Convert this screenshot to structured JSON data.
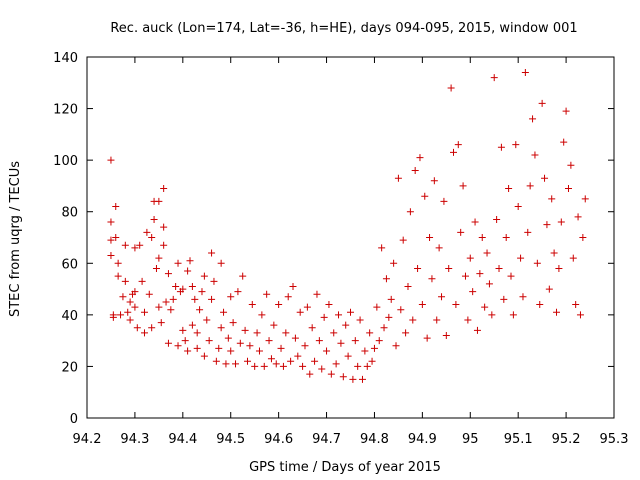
{
  "chart_data": {
    "type": "scatter",
    "title": "Rec. auck (Lon=174, Lat=-36, h=HE), days 094-095, 2015, window 001",
    "xlabel": "GPS time / Days of year 2015",
    "ylabel": "STEC from uqrg / TECUs",
    "xlim": [
      94.2,
      95.3
    ],
    "ylim": [
      0,
      140
    ],
    "x_ticks": [
      "94.2",
      "94.3",
      "94.4",
      "94.5",
      "94.6",
      "94.7",
      "94.8",
      "94.9",
      "95",
      "95.1",
      "95.2",
      "95.3"
    ],
    "y_ticks": [
      "0",
      "20",
      "40",
      "60",
      "80",
      "100",
      "120",
      "140"
    ],
    "x_tick_values": [
      94.2,
      94.3,
      94.4,
      94.5,
      94.6,
      94.7,
      94.8,
      94.9,
      95.0,
      95.1,
      95.2,
      95.3
    ],
    "y_tick_values": [
      0,
      20,
      40,
      60,
      80,
      100,
      120,
      140
    ],
    "marker": "+",
    "color": "#cc0000",
    "grid": false,
    "points": [
      [
        94.25,
        100
      ],
      [
        94.25,
        76
      ],
      [
        94.25,
        69
      ],
      [
        94.25,
        63
      ],
      [
        94.255,
        40
      ],
      [
        94.255,
        39
      ],
      [
        94.26,
        70
      ],
      [
        94.26,
        82
      ],
      [
        94.265,
        60
      ],
      [
        94.265,
        55
      ],
      [
        94.27,
        40
      ],
      [
        94.275,
        47
      ],
      [
        94.28,
        67
      ],
      [
        94.28,
        53
      ],
      [
        94.285,
        41
      ],
      [
        94.29,
        38
      ],
      [
        94.29,
        45
      ],
      [
        94.295,
        48
      ],
      [
        94.3,
        66
      ],
      [
        94.3,
        49
      ],
      [
        94.3,
        43
      ],
      [
        94.305,
        35
      ],
      [
        94.31,
        67
      ],
      [
        94.315,
        53
      ],
      [
        94.32,
        33
      ],
      [
        94.32,
        41
      ],
      [
        94.325,
        72
      ],
      [
        94.33,
        48
      ],
      [
        94.335,
        35
      ],
      [
        94.335,
        70
      ],
      [
        94.34,
        84
      ],
      [
        94.34,
        77
      ],
      [
        94.345,
        58
      ],
      [
        94.35,
        84
      ],
      [
        94.35,
        62
      ],
      [
        94.35,
        43
      ],
      [
        94.355,
        37
      ],
      [
        94.36,
        74
      ],
      [
        94.36,
        89
      ],
      [
        94.36,
        67
      ],
      [
        94.365,
        45
      ],
      [
        94.37,
        56
      ],
      [
        94.37,
        29
      ],
      [
        94.375,
        42
      ],
      [
        94.38,
        46
      ],
      [
        94.385,
        51
      ],
      [
        94.39,
        60
      ],
      [
        94.39,
        28
      ],
      [
        94.395,
        49
      ],
      [
        94.4,
        50
      ],
      [
        94.4,
        34
      ],
      [
        94.405,
        30
      ],
      [
        94.41,
        57
      ],
      [
        94.41,
        26
      ],
      [
        94.415,
        61
      ],
      [
        94.42,
        51
      ],
      [
        94.42,
        36
      ],
      [
        94.425,
        46
      ],
      [
        94.43,
        33
      ],
      [
        94.43,
        27
      ],
      [
        94.435,
        42
      ],
      [
        94.44,
        49
      ],
      [
        94.445,
        55
      ],
      [
        94.445,
        24
      ],
      [
        94.45,
        38
      ],
      [
        94.455,
        30
      ],
      [
        94.46,
        64
      ],
      [
        94.46,
        46
      ],
      [
        94.465,
        53
      ],
      [
        94.47,
        22
      ],
      [
        94.475,
        27
      ],
      [
        94.48,
        35
      ],
      [
        94.48,
        60
      ],
      [
        94.485,
        41
      ],
      [
        94.49,
        21
      ],
      [
        94.495,
        31
      ],
      [
        94.5,
        47
      ],
      [
        94.5,
        26
      ],
      [
        94.505,
        37
      ],
      [
        94.51,
        21
      ],
      [
        94.515,
        49
      ],
      [
        94.52,
        29
      ],
      [
        94.525,
        55
      ],
      [
        94.53,
        34
      ],
      [
        94.535,
        22
      ],
      [
        94.54,
        28
      ],
      [
        94.545,
        44
      ],
      [
        94.55,
        20
      ],
      [
        94.555,
        33
      ],
      [
        94.56,
        26
      ],
      [
        94.565,
        40
      ],
      [
        94.57,
        20
      ],
      [
        94.575,
        48
      ],
      [
        94.58,
        30
      ],
      [
        94.585,
        23
      ],
      [
        94.59,
        36
      ],
      [
        94.595,
        21
      ],
      [
        94.6,
        44
      ],
      [
        94.605,
        27
      ],
      [
        94.61,
        20
      ],
      [
        94.615,
        33
      ],
      [
        94.62,
        47
      ],
      [
        94.625,
        22
      ],
      [
        94.63,
        51
      ],
      [
        94.635,
        31
      ],
      [
        94.64,
        24
      ],
      [
        94.645,
        41
      ],
      [
        94.65,
        20
      ],
      [
        94.655,
        28
      ],
      [
        94.66,
        43
      ],
      [
        94.665,
        17
      ],
      [
        94.67,
        35
      ],
      [
        94.675,
        22
      ],
      [
        94.68,
        48
      ],
      [
        94.685,
        30
      ],
      [
        94.69,
        19
      ],
      [
        94.695,
        39
      ],
      [
        94.7,
        26
      ],
      [
        94.705,
        44
      ],
      [
        94.71,
        17
      ],
      [
        94.715,
        33
      ],
      [
        94.72,
        21
      ],
      [
        94.725,
        40
      ],
      [
        94.73,
        29
      ],
      [
        94.735,
        16
      ],
      [
        94.74,
        36
      ],
      [
        94.745,
        24
      ],
      [
        94.75,
        41
      ],
      [
        94.755,
        15
      ],
      [
        94.76,
        30
      ],
      [
        94.765,
        20
      ],
      [
        94.77,
        38
      ],
      [
        94.775,
        15
      ],
      [
        94.78,
        26
      ],
      [
        94.785,
        20
      ],
      [
        94.79,
        33
      ],
      [
        94.795,
        22
      ],
      [
        94.8,
        27
      ],
      [
        94.805,
        43
      ],
      [
        94.81,
        30
      ],
      [
        94.815,
        66
      ],
      [
        94.82,
        35
      ],
      [
        94.825,
        54
      ],
      [
        94.83,
        39
      ],
      [
        94.835,
        46
      ],
      [
        94.84,
        60
      ],
      [
        94.845,
        28
      ],
      [
        94.85,
        93
      ],
      [
        94.855,
        42
      ],
      [
        94.86,
        69
      ],
      [
        94.865,
        33
      ],
      [
        94.87,
        51
      ],
      [
        94.875,
        80
      ],
      [
        94.88,
        38
      ],
      [
        94.885,
        96
      ],
      [
        94.89,
        58
      ],
      [
        94.895,
        101
      ],
      [
        94.9,
        44
      ],
      [
        94.905,
        86
      ],
      [
        94.91,
        31
      ],
      [
        94.915,
        70
      ],
      [
        94.92,
        54
      ],
      [
        94.925,
        92
      ],
      [
        94.93,
        38
      ],
      [
        94.935,
        66
      ],
      [
        94.94,
        47
      ],
      [
        94.945,
        84
      ],
      [
        94.95,
        32
      ],
      [
        94.955,
        58
      ],
      [
        94.96,
        128
      ],
      [
        94.965,
        103
      ],
      [
        94.97,
        44
      ],
      [
        94.975,
        106
      ],
      [
        94.98,
        72
      ],
      [
        94.985,
        90
      ],
      [
        94.99,
        55
      ],
      [
        94.995,
        38
      ],
      [
        95.0,
        62
      ],
      [
        95.005,
        49
      ],
      [
        95.01,
        76
      ],
      [
        95.015,
        34
      ],
      [
        95.02,
        56
      ],
      [
        95.025,
        70
      ],
      [
        95.03,
        43
      ],
      [
        95.035,
        64
      ],
      [
        95.04,
        52
      ],
      [
        95.045,
        40
      ],
      [
        95.05,
        132
      ],
      [
        95.055,
        77
      ],
      [
        95.06,
        58
      ],
      [
        95.065,
        105
      ],
      [
        95.07,
        46
      ],
      [
        95.075,
        70
      ],
      [
        95.08,
        89
      ],
      [
        95.085,
        55
      ],
      [
        95.09,
        40
      ],
      [
        95.095,
        106
      ],
      [
        95.1,
        82
      ],
      [
        95.105,
        62
      ],
      [
        95.11,
        47
      ],
      [
        95.115,
        134
      ],
      [
        95.12,
        72
      ],
      [
        95.125,
        90
      ],
      [
        95.13,
        116
      ],
      [
        95.135,
        102
      ],
      [
        95.14,
        60
      ],
      [
        95.145,
        44
      ],
      [
        95.15,
        122
      ],
      [
        95.155,
        93
      ],
      [
        95.16,
        75
      ],
      [
        95.165,
        50
      ],
      [
        95.17,
        85
      ],
      [
        95.175,
        64
      ],
      [
        95.18,
        41
      ],
      [
        95.185,
        58
      ],
      [
        95.19,
        76
      ],
      [
        95.195,
        107
      ],
      [
        95.2,
        119
      ],
      [
        95.205,
        89
      ],
      [
        95.21,
        98
      ],
      [
        95.215,
        62
      ],
      [
        95.22,
        44
      ],
      [
        95.225,
        78
      ],
      [
        95.23,
        40
      ],
      [
        95.235,
        70
      ],
      [
        95.24,
        85
      ]
    ]
  }
}
